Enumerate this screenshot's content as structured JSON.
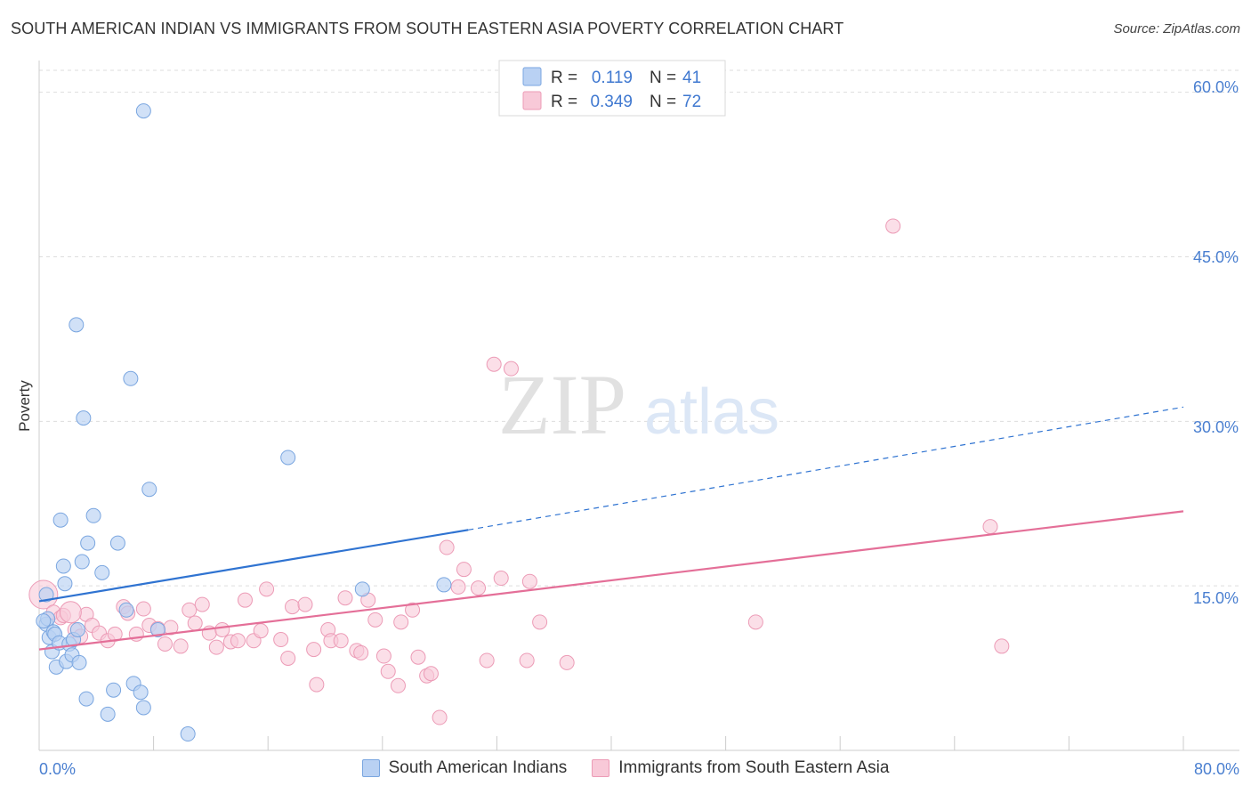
{
  "title": "SOUTH AMERICAN INDIAN VS IMMIGRANTS FROM SOUTH EASTERN ASIA POVERTY CORRELATION CHART",
  "source": "Source: ZipAtlas.com",
  "watermark": {
    "zip": "ZIP",
    "atlas": "atlas"
  },
  "legend_top": {
    "rows": [
      {
        "r_label": "R =",
        "r_value": "0.119",
        "n_label": "N =",
        "n_value": "41"
      },
      {
        "r_label": "R =",
        "r_value": "0.349",
        "n_label": "N =",
        "n_value": "72"
      }
    ]
  },
  "legend_bottom": {
    "series1": "South American Indians",
    "series2": "Immigrants from South Eastern Asia"
  },
  "colors": {
    "series1_fill": "#b9d1f3",
    "series1_stroke": "#7aa6e0",
    "series1_line": "#2f73d1",
    "series2_fill": "#f8c9d8",
    "series2_stroke": "#ec9bb6",
    "series2_line": "#e46f98",
    "tick_text": "#4a7fd0",
    "grid": "#dddddd"
  },
  "chart_data": {
    "type": "scatter",
    "title": "SOUTH AMERICAN INDIAN VS IMMIGRANTS FROM SOUTH EASTERN ASIA POVERTY CORRELATION CHART",
    "xlabel": "",
    "ylabel": "Poverty",
    "xlim": [
      0,
      80
    ],
    "ylim": [
      0,
      62
    ],
    "x_tick_labels": [
      "0.0%",
      "80.0%"
    ],
    "y_ticks": [
      15,
      30,
      45,
      60
    ],
    "y_tick_labels": [
      "15.0%",
      "30.0%",
      "45.0%",
      "60.0%"
    ],
    "series": [
      {
        "name": "South American Indians",
        "R": 0.119,
        "N": 41,
        "trend": {
          "x0": 0,
          "y0": 13.6,
          "x1": 30,
          "y1": 20.1,
          "x_dash_end": 80,
          "y_dash_end": 31.3
        },
        "points": [
          [
            0.5,
            14.2
          ],
          [
            0.5,
            11.5
          ],
          [
            0.6,
            12.0
          ],
          [
            0.7,
            10.3
          ],
          [
            0.9,
            9.0
          ],
          [
            1.0,
            10.8
          ],
          [
            1.1,
            10.6
          ],
          [
            1.2,
            7.6
          ],
          [
            1.4,
            9.8
          ],
          [
            1.5,
            21.0
          ],
          [
            1.7,
            16.8
          ],
          [
            1.8,
            15.2
          ],
          [
            1.9,
            8.1
          ],
          [
            2.1,
            9.7
          ],
          [
            2.3,
            8.7
          ],
          [
            2.4,
            10.1
          ],
          [
            2.6,
            38.8
          ],
          [
            2.7,
            11.0
          ],
          [
            2.8,
            8.0
          ],
          [
            3.0,
            17.2
          ],
          [
            3.1,
            30.3
          ],
          [
            3.3,
            4.7
          ],
          [
            3.4,
            18.9
          ],
          [
            3.8,
            21.4
          ],
          [
            4.4,
            16.2
          ],
          [
            4.8,
            3.3
          ],
          [
            5.2,
            5.5
          ],
          [
            5.5,
            18.9
          ],
          [
            6.1,
            12.8
          ],
          [
            6.4,
            33.9
          ],
          [
            6.6,
            6.1
          ],
          [
            7.1,
            5.3
          ],
          [
            7.3,
            3.9
          ],
          [
            7.3,
            58.3
          ],
          [
            7.7,
            23.8
          ],
          [
            8.3,
            11.0
          ],
          [
            10.4,
            1.5
          ],
          [
            17.4,
            26.7
          ],
          [
            22.6,
            14.7
          ],
          [
            28.3,
            15.1
          ],
          [
            0.3,
            11.8
          ]
        ]
      },
      {
        "name": "Immigrants from South Eastern Asia",
        "R": 0.349,
        "N": 72,
        "trend": {
          "x0": 0,
          "y0": 9.2,
          "x1": 80,
          "y1": 21.8
        },
        "points": [
          [
            0.3,
            14.2
          ],
          [
            1.0,
            12.6
          ],
          [
            1.5,
            12.1
          ],
          [
            1.7,
            12.3
          ],
          [
            2.5,
            11.0
          ],
          [
            2.9,
            10.4
          ],
          [
            3.3,
            12.4
          ],
          [
            3.7,
            11.4
          ],
          [
            4.2,
            10.7
          ],
          [
            4.8,
            10.0
          ],
          [
            5.3,
            10.6
          ],
          [
            5.9,
            13.1
          ],
          [
            6.2,
            12.5
          ],
          [
            6.8,
            10.6
          ],
          [
            7.3,
            12.9
          ],
          [
            7.7,
            11.4
          ],
          [
            8.3,
            11.1
          ],
          [
            8.8,
            9.7
          ],
          [
            9.2,
            11.2
          ],
          [
            9.9,
            9.5
          ],
          [
            10.5,
            12.8
          ],
          [
            10.9,
            11.6
          ],
          [
            11.4,
            13.3
          ],
          [
            11.9,
            10.7
          ],
          [
            12.4,
            9.4
          ],
          [
            12.8,
            11.0
          ],
          [
            13.4,
            9.9
          ],
          [
            13.9,
            10.0
          ],
          [
            14.4,
            13.7
          ],
          [
            15.0,
            10.0
          ],
          [
            15.5,
            10.9
          ],
          [
            15.9,
            14.7
          ],
          [
            16.9,
            10.1
          ],
          [
            17.4,
            8.4
          ],
          [
            17.7,
            13.1
          ],
          [
            18.6,
            13.3
          ],
          [
            19.2,
            9.2
          ],
          [
            19.4,
            6.0
          ],
          [
            20.2,
            11.0
          ],
          [
            20.4,
            10.0
          ],
          [
            21.1,
            10.0
          ],
          [
            21.4,
            13.9
          ],
          [
            22.2,
            9.1
          ],
          [
            22.5,
            8.9
          ],
          [
            23.0,
            13.7
          ],
          [
            23.5,
            11.9
          ],
          [
            24.1,
            8.6
          ],
          [
            24.4,
            7.2
          ],
          [
            25.1,
            5.9
          ],
          [
            25.3,
            11.7
          ],
          [
            26.1,
            12.8
          ],
          [
            26.5,
            8.5
          ],
          [
            27.1,
            6.8
          ],
          [
            27.4,
            7.0
          ],
          [
            28.0,
            3.0
          ],
          [
            28.5,
            18.5
          ],
          [
            29.3,
            14.9
          ],
          [
            29.7,
            16.5
          ],
          [
            30.7,
            14.8
          ],
          [
            31.3,
            8.2
          ],
          [
            31.8,
            35.2
          ],
          [
            32.3,
            15.7
          ],
          [
            33.0,
            34.8
          ],
          [
            34.1,
            8.2
          ],
          [
            34.3,
            15.4
          ],
          [
            35.0,
            11.7
          ],
          [
            36.9,
            8.0
          ],
          [
            50.1,
            11.7
          ],
          [
            59.7,
            47.8
          ],
          [
            66.5,
            20.4
          ],
          [
            67.3,
            9.5
          ],
          [
            2.2,
            12.6
          ]
        ]
      }
    ]
  }
}
